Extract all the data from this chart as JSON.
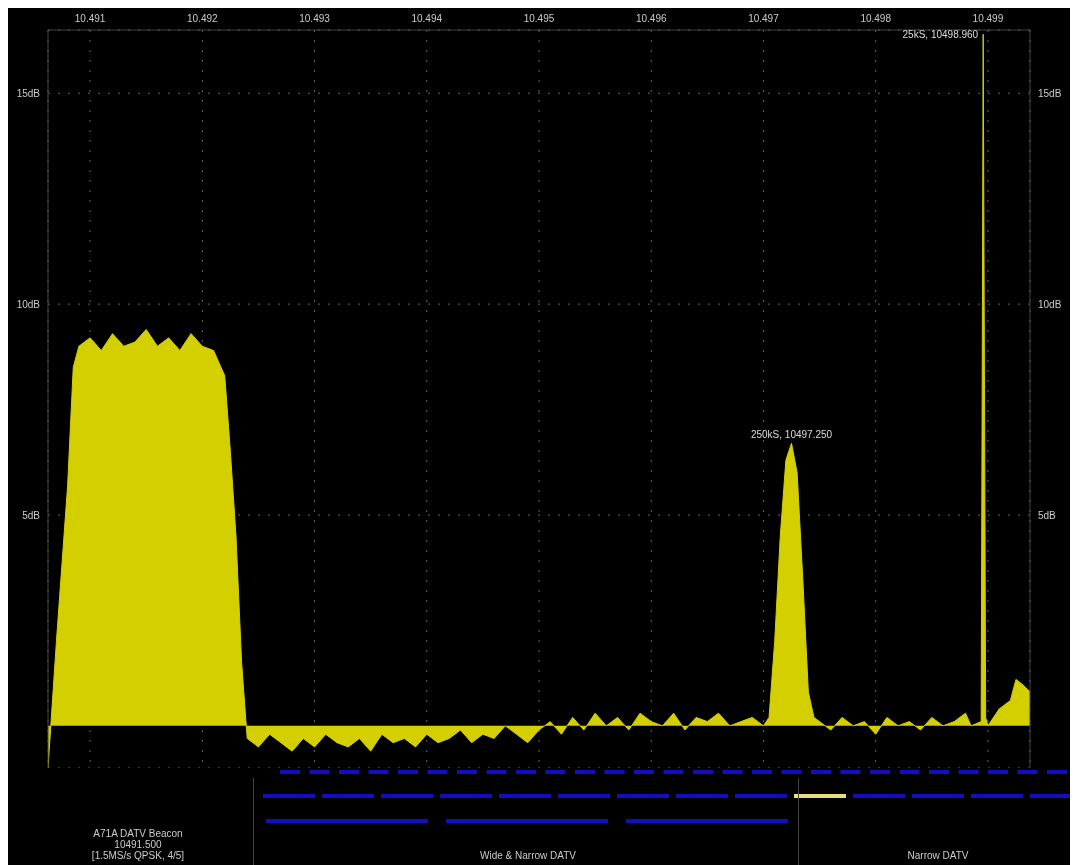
{
  "chart_data": {
    "type": "area",
    "x": [
      10.490625,
      10.4907,
      10.4908,
      10.49085,
      10.4909,
      10.491,
      10.4911,
      10.4912,
      10.4913,
      10.4914,
      10.4915,
      10.4916,
      10.4917,
      10.4918,
      10.4919,
      10.492,
      10.4921,
      10.4922,
      10.49225,
      10.4923,
      10.49235,
      10.4924,
      10.4925,
      10.4926,
      10.4927,
      10.4928,
      10.4929,
      10.493,
      10.4931,
      10.4932,
      10.4933,
      10.4934,
      10.4935,
      10.4936,
      10.4937,
      10.4938,
      10.4939,
      10.494,
      10.4941,
      10.4942,
      10.4943,
      10.4944,
      10.4945,
      10.4946,
      10.4947,
      10.4948,
      10.4949,
      10.495,
      10.4951,
      10.4952,
      10.4953,
      10.4954,
      10.4955,
      10.4956,
      10.4957,
      10.4958,
      10.4959,
      10.496,
      10.4961,
      10.4962,
      10.4963,
      10.4964,
      10.4965,
      10.4966,
      10.4967,
      10.4968,
      10.4969,
      10.497,
      10.49705,
      10.4971,
      10.49715,
      10.4972,
      10.49725,
      10.4973,
      10.49735,
      10.4974,
      10.49745,
      10.4975,
      10.4976,
      10.4977,
      10.4978,
      10.4979,
      10.498,
      10.4981,
      10.4982,
      10.4983,
      10.4984,
      10.4985,
      10.4986,
      10.4987,
      10.4988,
      10.49885,
      10.49894,
      10.498958,
      10.49898,
      10.499,
      10.4991,
      10.4992,
      10.49925,
      10.4993,
      10.499375
    ],
    "series": [
      {
        "color": "#d4cf00",
        "values": [
          -1.0,
          2.0,
          5.7,
          8.5,
          9.0,
          9.2,
          8.9,
          9.3,
          9.0,
          9.1,
          9.4,
          9.0,
          9.2,
          8.9,
          9.3,
          9.0,
          8.9,
          8.3,
          6.5,
          4.5,
          1.5,
          -0.3,
          -0.5,
          -0.2,
          -0.4,
          -0.6,
          -0.3,
          -0.5,
          -0.2,
          -0.4,
          -0.5,
          -0.3,
          -0.6,
          -0.2,
          -0.4,
          -0.3,
          -0.5,
          -0.2,
          -0.4,
          -0.3,
          -0.1,
          -0.4,
          -0.2,
          -0.3,
          0.0,
          -0.2,
          -0.4,
          -0.1,
          0.1,
          -0.2,
          0.2,
          -0.1,
          0.3,
          0.0,
          0.2,
          -0.1,
          0.3,
          0.1,
          0.0,
          0.3,
          -0.1,
          0.2,
          0.1,
          0.3,
          0.0,
          0.1,
          0.2,
          0.0,
          0.2,
          2.0,
          4.5,
          6.3,
          6.7,
          6.0,
          3.5,
          0.8,
          0.2,
          0.1,
          -0.1,
          0.2,
          0.0,
          0.1,
          -0.2,
          0.2,
          0.0,
          0.1,
          -0.1,
          0.2,
          0.0,
          0.1,
          0.3,
          0.0,
          0.1,
          16.4,
          0.2,
          0.0,
          0.4,
          0.6,
          1.1,
          1.0,
          0.8
        ]
      }
    ],
    "xlim": [
      10.490625,
      10.499375
    ],
    "xticks": [
      10.491,
      10.492,
      10.493,
      10.494,
      10.495,
      10.496,
      10.497,
      10.498,
      10.499
    ],
    "ylim": [
      -1,
      16.5
    ],
    "yticks": [
      {
        "value": 5,
        "label": "5dB"
      },
      {
        "value": 10,
        "label": "10dB"
      },
      {
        "value": 15,
        "label": "15dB"
      }
    ],
    "y2lim": [
      -1,
      16.5
    ],
    "y2ticks": [
      {
        "value": 5,
        "label": "5dB"
      },
      {
        "value": 10,
        "label": "10dB"
      },
      {
        "value": 15,
        "label": "15dB"
      }
    ],
    "grid": true,
    "legend": false,
    "annotations": [
      {
        "text": "250kS, 10497.250",
        "x": 10.49725,
        "y": 6.7
      },
      {
        "text": "25kS, 10498.960",
        "x": 10.498958,
        "y": 16.4
      },
      "A71A DATV Beacon\n10491.500\n[1.5MS/s QPSK, 4/5]",
      "Wide & Narrow DATV",
      "Narrow DATV"
    ]
  }
}
